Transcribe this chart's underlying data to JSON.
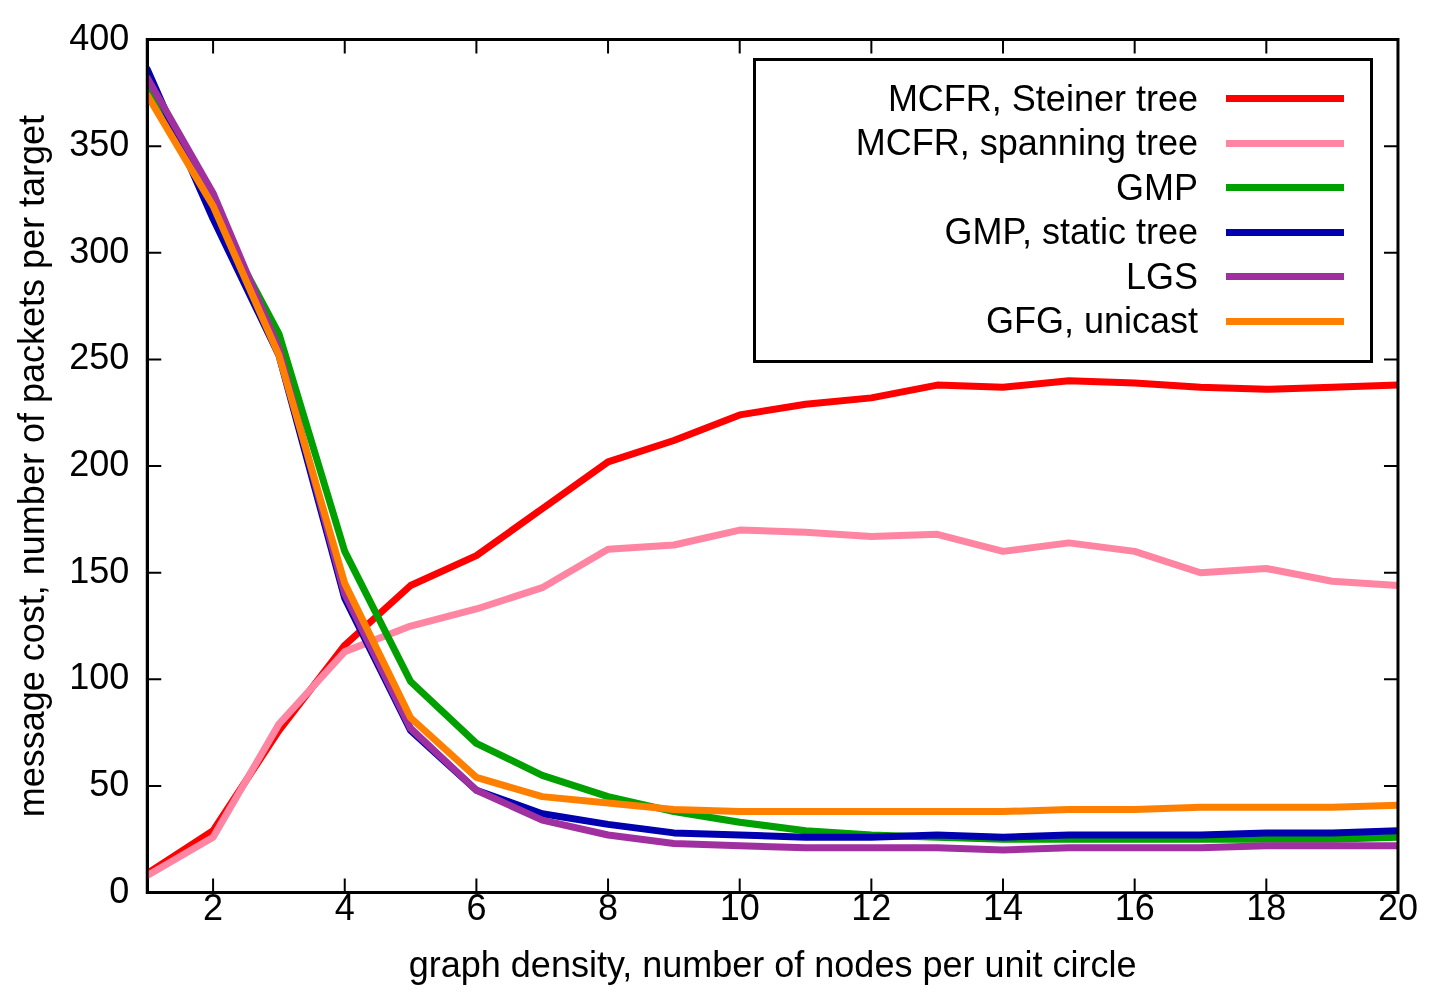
{
  "chart_data": {
    "type": "line",
    "xlabel": "graph density, number of nodes per unit circle",
    "ylabel": "message cost, number of packets per target",
    "x": [
      1,
      2,
      3,
      4,
      5,
      6,
      7,
      8,
      9,
      10,
      11,
      12,
      13,
      14,
      15,
      16,
      17,
      18,
      19,
      20
    ],
    "xlim": [
      1,
      20
    ],
    "xticks": [
      2,
      4,
      6,
      8,
      10,
      12,
      14,
      16,
      18,
      20
    ],
    "ylim": [
      0,
      400
    ],
    "yticks": [
      0,
      50,
      100,
      150,
      200,
      250,
      300,
      350,
      400
    ],
    "grid": false,
    "legend": "top right",
    "marker": "none",
    "line_style": "solid",
    "series": [
      {
        "name": "MCFR, Steiner tree",
        "color": "#ff0000",
        "values": [
          9,
          29,
          76,
          116,
          144,
          158,
          180,
          202,
          212,
          224,
          229,
          232,
          238,
          237,
          240,
          239,
          237,
          236,
          237,
          238
        ]
      },
      {
        "name": "MCFR, spanning tree",
        "color": "#ff85a3",
        "values": [
          8,
          26,
          79,
          113,
          125,
          133,
          143,
          161,
          163,
          170,
          169,
          167,
          168,
          160,
          164,
          160,
          150,
          152,
          146,
          144
        ]
      },
      {
        "name": "GMP",
        "color": "#00a000",
        "values": [
          380,
          320,
          262,
          160,
          99,
          70,
          55,
          45,
          38,
          33,
          29,
          27,
          26,
          25,
          25,
          25,
          25,
          25,
          25,
          26
        ]
      },
      {
        "name": "GMP, static tree",
        "color": "#0000b0",
        "values": [
          386,
          316,
          252,
          138,
          76,
          48,
          37,
          32,
          28,
          27,
          26,
          26,
          27,
          26,
          27,
          27,
          27,
          28,
          28,
          29
        ]
      },
      {
        "name": "LGS",
        "color": "#a030a0",
        "values": [
          382,
          328,
          255,
          140,
          77,
          48,
          34,
          27,
          23,
          22,
          21,
          21,
          21,
          20,
          21,
          21,
          21,
          22,
          22,
          22
        ]
      },
      {
        "name": "GFG, unicast",
        "color": "#ff8000",
        "values": [
          374,
          322,
          252,
          145,
          82,
          54,
          45,
          42,
          39,
          38,
          38,
          38,
          38,
          38,
          39,
          39,
          40,
          40,
          40,
          41
        ]
      }
    ]
  }
}
